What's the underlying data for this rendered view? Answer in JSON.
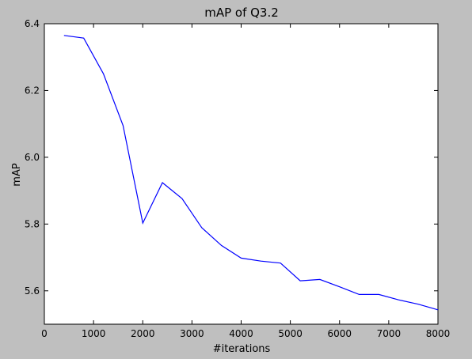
{
  "chart_data": {
    "type": "line",
    "title": "mAP of Q3.2",
    "xlabel": "#iterations",
    "ylabel": "mAP",
    "xlim": [
      0,
      8000
    ],
    "ylim": [
      5.5,
      6.4
    ],
    "xticks": [
      0,
      1000,
      2000,
      3000,
      4000,
      5000,
      6000,
      7000,
      8000
    ],
    "xtick_labels": [
      "0",
      "1000",
      "2000",
      "3000",
      "4000",
      "5000",
      "6000",
      "7000",
      "8000"
    ],
    "yticks": [
      5.6,
      5.8,
      6.0,
      6.2,
      6.4
    ],
    "ytick_labels": [
      "5.6",
      "5.8",
      "6.0",
      "6.2",
      "6.4"
    ],
    "grid": false,
    "series": [
      {
        "color": "#0000ff",
        "x": [
          400,
          800,
          1200,
          1600,
          2000,
          2400,
          2800,
          3200,
          3600,
          4000,
          4400,
          4800,
          5200,
          5600,
          6000,
          6400,
          6800,
          7200,
          7600,
          8000
        ],
        "y": [
          6.365,
          6.357,
          6.25,
          6.095,
          5.803,
          5.924,
          5.876,
          5.789,
          5.736,
          5.698,
          5.689,
          5.683,
          5.63,
          5.634,
          5.612,
          5.589,
          5.589,
          5.573,
          5.56,
          5.543
        ]
      }
    ]
  }
}
